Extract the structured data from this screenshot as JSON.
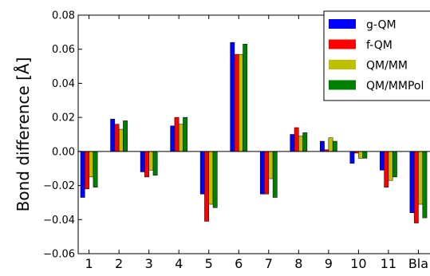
{
  "chart_data": {
    "type": "bar",
    "title": "",
    "xlabel": "",
    "ylabel": "Bond difference [Å]",
    "ylim": [
      -0.06,
      0.08
    ],
    "yticks": [
      "−0.06",
      "−0.04",
      "−0.02",
      "0.00",
      "0.02",
      "0.04",
      "0.06",
      "0.08"
    ],
    "ytick_values": [
      -0.06,
      -0.04,
      -0.02,
      0.0,
      0.02,
      0.04,
      0.06,
      0.08
    ],
    "categories": [
      "1",
      "2",
      "3",
      "4",
      "5",
      "6",
      "7",
      "8",
      "9",
      "10",
      "11",
      "Bla"
    ],
    "legend_position": "top-right",
    "grid": false,
    "series": [
      {
        "name": "g-QM",
        "color": "#0000ff",
        "values": [
          -0.027,
          0.019,
          -0.012,
          0.015,
          -0.025,
          0.064,
          -0.025,
          0.01,
          0.006,
          -0.007,
          -0.011,
          -0.036
        ]
      },
      {
        "name": "f-QM",
        "color": "#ff0000",
        "values": [
          -0.022,
          0.016,
          -0.015,
          0.02,
          -0.041,
          0.057,
          -0.025,
          0.014,
          0.001,
          -0.001,
          -0.021,
          -0.042
        ]
      },
      {
        "name": "QM/MM",
        "color": "#bfbf00",
        "values": [
          -0.015,
          0.013,
          -0.011,
          0.016,
          -0.031,
          0.057,
          -0.016,
          0.009,
          0.008,
          -0.004,
          -0.017,
          -0.031
        ]
      },
      {
        "name": "QM/MMPol",
        "color": "#008000",
        "values": [
          -0.021,
          0.018,
          -0.014,
          0.02,
          -0.033,
          0.063,
          -0.027,
          0.011,
          0.006,
          -0.004,
          -0.015,
          -0.039
        ]
      }
    ]
  }
}
